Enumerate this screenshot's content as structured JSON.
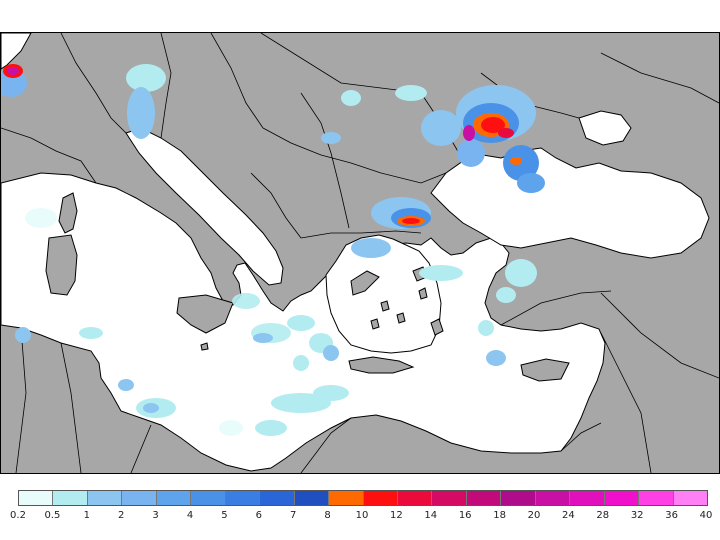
{
  "map": {
    "land_color": "#a7a7a7",
    "sea_color": "#ffffff",
    "border_color": "#000000"
  },
  "legend": {
    "colors": [
      "#e8fcfc",
      "#b2ecf0",
      "#8cc6f0",
      "#7ab4f0",
      "#5ea4ec",
      "#4a92e8",
      "#3a7ee4",
      "#2a66d8",
      "#2050c0",
      "#ff6a00",
      "#ff1010",
      "#ea0a3c",
      "#d40a64",
      "#c20a7a",
      "#ae0c8a",
      "#c810a4",
      "#e010bc",
      "#f010cc",
      "#ff40e4",
      "#ff80f4"
    ],
    "labels": [
      "0.2",
      "0.5",
      "1",
      "2",
      "3",
      "4",
      "5",
      "6",
      "7",
      "8",
      "10",
      "12",
      "14",
      "16",
      "18",
      "20",
      "24",
      "28",
      "32",
      "36",
      "40"
    ]
  }
}
